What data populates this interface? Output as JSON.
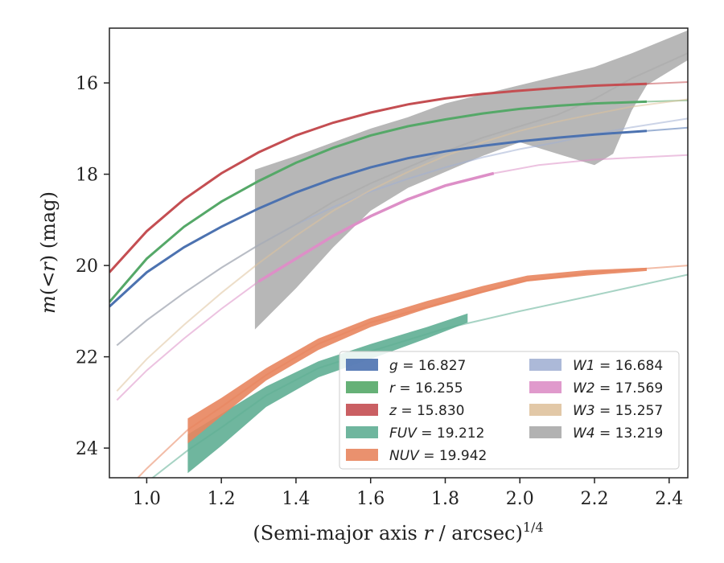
{
  "chart_data": {
    "type": "line",
    "xlabel": "(Semi-major axis r / arcsec)1/4",
    "xlabel_parts": {
      "main": "(Semi-major axis ",
      "var": "r",
      "mid": " / arcsec)",
      "sup": "1/4"
    },
    "ylabel": "m(<r) (mag)",
    "ylabel_parts": {
      "m": "m",
      "lt": "(<",
      "r": "r",
      "rest": ") (mag)"
    },
    "xlim": [
      0.9,
      2.45
    ],
    "ylim": [
      24.65,
      14.8
    ],
    "y_inverted": true,
    "x_ticks": [
      1.0,
      1.2,
      1.4,
      1.6,
      1.8,
      2.0,
      2.2,
      2.4
    ],
    "x_tick_labels": [
      "1.0",
      "1.2",
      "1.4",
      "1.6",
      "1.8",
      "2.0",
      "2.2",
      "2.4"
    ],
    "y_ticks": [
      16,
      18,
      20,
      22,
      24
    ],
    "y_tick_labels": [
      "16",
      "18",
      "20",
      "22",
      "24"
    ],
    "grid": false,
    "legend_position": "lower-right",
    "series": [
      {
        "name": "g = 16.827",
        "var": "g",
        "value": "16.827",
        "color": "#4c72b0",
        "line": [
          [
            0.9,
            20.9
          ],
          [
            1.0,
            20.15
          ],
          [
            1.1,
            19.6
          ],
          [
            1.2,
            19.15
          ],
          [
            1.3,
            18.75
          ],
          [
            1.4,
            18.4
          ],
          [
            1.5,
            18.1
          ],
          [
            1.6,
            17.85
          ],
          [
            1.7,
            17.65
          ],
          [
            1.8,
            17.5
          ],
          [
            1.9,
            17.38
          ],
          [
            2.0,
            17.28
          ],
          [
            2.1,
            17.2
          ],
          [
            2.2,
            17.13
          ],
          [
            2.34,
            17.05
          ]
        ],
        "ext": [
          [
            2.34,
            17.05
          ],
          [
            2.45,
            16.98
          ]
        ]
      },
      {
        "name": "r = 16.255",
        "var": "r",
        "value": "16.255",
        "color": "#55a868",
        "line": [
          [
            0.9,
            20.8
          ],
          [
            1.0,
            19.85
          ],
          [
            1.1,
            19.15
          ],
          [
            1.2,
            18.6
          ],
          [
            1.3,
            18.15
          ],
          [
            1.4,
            17.75
          ],
          [
            1.5,
            17.42
          ],
          [
            1.6,
            17.15
          ],
          [
            1.7,
            16.95
          ],
          [
            1.8,
            16.8
          ],
          [
            1.9,
            16.67
          ],
          [
            2.0,
            16.57
          ],
          [
            2.1,
            16.5
          ],
          [
            2.2,
            16.45
          ],
          [
            2.34,
            16.41
          ]
        ],
        "ext": [
          [
            2.34,
            16.41
          ],
          [
            2.45,
            16.38
          ]
        ]
      },
      {
        "name": "z = 15.830",
        "var": "z",
        "value": "15.830",
        "color": "#c44e52",
        "line": [
          [
            0.9,
            20.15
          ],
          [
            1.0,
            19.25
          ],
          [
            1.1,
            18.55
          ],
          [
            1.2,
            17.98
          ],
          [
            1.3,
            17.52
          ],
          [
            1.4,
            17.15
          ],
          [
            1.5,
            16.87
          ],
          [
            1.6,
            16.65
          ],
          [
            1.7,
            16.47
          ],
          [
            1.8,
            16.34
          ],
          [
            1.9,
            16.24
          ],
          [
            2.0,
            16.17
          ],
          [
            2.1,
            16.11
          ],
          [
            2.2,
            16.06
          ],
          [
            2.34,
            16.02
          ]
        ],
        "ext": [
          [
            2.34,
            16.02
          ],
          [
            2.45,
            15.98
          ]
        ]
      },
      {
        "name": "FUV = 19.212",
        "var": "FUV",
        "value": "19.212",
        "color": "#5fae94",
        "upper": [
          [
            1.11,
            23.7
          ],
          [
            1.2,
            23.25
          ],
          [
            1.32,
            22.65
          ],
          [
            1.46,
            22.1
          ],
          [
            1.6,
            21.72
          ],
          [
            1.75,
            21.35
          ],
          [
            1.86,
            21.05
          ]
        ],
        "lower": [
          [
            1.11,
            24.55
          ],
          [
            1.2,
            23.95
          ],
          [
            1.32,
            23.1
          ],
          [
            1.46,
            22.45
          ],
          [
            1.6,
            22.05
          ],
          [
            1.75,
            21.6
          ],
          [
            1.86,
            21.25
          ]
        ],
        "ext": [
          [
            0.95,
            25.3
          ],
          [
            1.0,
            24.75
          ],
          [
            1.11,
            24.05
          ],
          [
            1.2,
            23.55
          ],
          [
            1.32,
            22.85
          ],
          [
            1.46,
            22.25
          ],
          [
            1.6,
            21.88
          ],
          [
            1.8,
            21.38
          ],
          [
            2.0,
            21.0
          ],
          [
            2.2,
            20.65
          ],
          [
            2.45,
            20.2
          ]
        ]
      },
      {
        "name": "NUV = 19.942",
        "var": "NUV",
        "value": "19.942",
        "color": "#e8855e",
        "upper": [
          [
            1.11,
            23.35
          ],
          [
            1.2,
            22.9
          ],
          [
            1.32,
            22.25
          ],
          [
            1.46,
            21.6
          ],
          [
            1.6,
            21.15
          ],
          [
            1.75,
            20.78
          ],
          [
            1.9,
            20.45
          ],
          [
            2.02,
            20.22
          ],
          [
            2.18,
            20.1
          ],
          [
            2.34,
            20.05
          ]
        ],
        "lower": [
          [
            1.11,
            23.9
          ],
          [
            1.2,
            23.3
          ],
          [
            1.32,
            22.52
          ],
          [
            1.46,
            21.85
          ],
          [
            1.6,
            21.35
          ],
          [
            1.75,
            20.95
          ],
          [
            1.9,
            20.6
          ],
          [
            2.02,
            20.35
          ],
          [
            2.18,
            20.22
          ],
          [
            2.34,
            20.12
          ]
        ],
        "ext": [
          [
            0.9,
            25.3
          ],
          [
            1.0,
            24.45
          ],
          [
            1.11,
            23.6
          ],
          [
            1.2,
            23.1
          ],
          [
            1.32,
            22.4
          ],
          [
            1.46,
            21.72
          ],
          [
            1.6,
            21.25
          ],
          [
            1.8,
            20.8
          ],
          [
            2.0,
            20.35
          ],
          [
            2.2,
            20.15
          ],
          [
            2.45,
            20.0
          ]
        ]
      },
      {
        "name": "W1 = 16.684",
        "var": "W1",
        "value": "16.684",
        "color": "#a3b1d4",
        "ext": [
          [
            0.92,
            21.75
          ],
          [
            1.0,
            21.2
          ],
          [
            1.1,
            20.6
          ],
          [
            1.2,
            20.05
          ],
          [
            1.3,
            19.55
          ],
          [
            1.4,
            19.1
          ],
          [
            1.5,
            18.72
          ],
          [
            1.6,
            18.38
          ],
          [
            1.7,
            18.1
          ],
          [
            1.8,
            17.85
          ],
          [
            1.9,
            17.63
          ],
          [
            2.0,
            17.45
          ],
          [
            2.1,
            17.3
          ],
          [
            2.2,
            17.12
          ],
          [
            2.3,
            16.97
          ],
          [
            2.45,
            16.78
          ]
        ]
      },
      {
        "name": "W2 = 17.569",
        "var": "W2",
        "value": "17.569",
        "color": "#dd8fc7",
        "line": [
          [
            1.3,
            20.35
          ],
          [
            1.4,
            19.85
          ],
          [
            1.5,
            19.35
          ],
          [
            1.6,
            18.92
          ],
          [
            1.7,
            18.55
          ],
          [
            1.8,
            18.25
          ],
          [
            1.93,
            17.98
          ]
        ],
        "ext": [
          [
            0.92,
            22.95
          ],
          [
            1.0,
            22.3
          ],
          [
            1.1,
            21.6
          ],
          [
            1.2,
            20.95
          ],
          [
            1.3,
            20.35
          ],
          [
            1.4,
            19.85
          ],
          [
            1.5,
            19.35
          ],
          [
            1.6,
            18.92
          ],
          [
            1.7,
            18.55
          ],
          [
            1.8,
            18.25
          ],
          [
            1.93,
            17.98
          ],
          [
            2.05,
            17.8
          ],
          [
            2.2,
            17.68
          ],
          [
            2.45,
            17.58
          ]
        ]
      },
      {
        "name": "W3 = 15.257",
        "var": "W3",
        "value": "15.257",
        "color": "#dfc29d",
        "ext": [
          [
            0.92,
            22.75
          ],
          [
            1.0,
            22.05
          ],
          [
            1.1,
            21.3
          ],
          [
            1.2,
            20.6
          ],
          [
            1.3,
            19.95
          ],
          [
            1.4,
            19.35
          ],
          [
            1.5,
            18.8
          ],
          [
            1.6,
            18.35
          ],
          [
            1.7,
            17.95
          ],
          [
            1.8,
            17.6
          ],
          [
            1.9,
            17.3
          ],
          [
            2.0,
            17.05
          ],
          [
            2.1,
            16.85
          ],
          [
            2.2,
            16.68
          ],
          [
            2.3,
            16.52
          ],
          [
            2.45,
            16.36
          ]
        ]
      },
      {
        "name": "W4 = 13.219",
        "var": "W4",
        "value": "13.219",
        "color": "#aaaaaa",
        "upper": [
          [
            1.29,
            17.9
          ],
          [
            1.4,
            17.6
          ],
          [
            1.5,
            17.3
          ],
          [
            1.6,
            17.0
          ],
          [
            1.7,
            16.75
          ],
          [
            1.8,
            16.45
          ],
          [
            1.9,
            16.25
          ],
          [
            2.0,
            16.05
          ],
          [
            2.1,
            15.85
          ],
          [
            2.2,
            15.65
          ],
          [
            2.3,
            15.35
          ],
          [
            2.45,
            14.85
          ]
        ],
        "lower": [
          [
            1.29,
            21.4
          ],
          [
            1.4,
            20.5
          ],
          [
            1.5,
            19.6
          ],
          [
            1.6,
            18.8
          ],
          [
            1.7,
            18.3
          ],
          [
            1.8,
            17.95
          ],
          [
            1.9,
            17.6
          ],
          [
            2.0,
            17.3
          ],
          [
            2.1,
            17.55
          ],
          [
            2.2,
            17.8
          ],
          [
            2.25,
            17.55
          ],
          [
            2.3,
            16.6
          ],
          [
            2.34,
            16.05
          ],
          [
            2.4,
            15.75
          ],
          [
            2.45,
            15.5
          ]
        ],
        "ext": [
          [
            0.92,
            21.75
          ],
          [
            1.0,
            21.2
          ],
          [
            1.1,
            20.6
          ],
          [
            1.2,
            20.05
          ],
          [
            1.29,
            19.6
          ],
          [
            1.4,
            19.1
          ],
          [
            1.5,
            18.6
          ],
          [
            1.6,
            18.2
          ],
          [
            1.7,
            17.85
          ],
          [
            1.8,
            17.5
          ],
          [
            1.9,
            17.2
          ],
          [
            2.0,
            16.95
          ],
          [
            2.1,
            16.7
          ],
          [
            2.2,
            16.35
          ],
          [
            2.3,
            15.9
          ],
          [
            2.45,
            15.35
          ]
        ]
      }
    ]
  }
}
